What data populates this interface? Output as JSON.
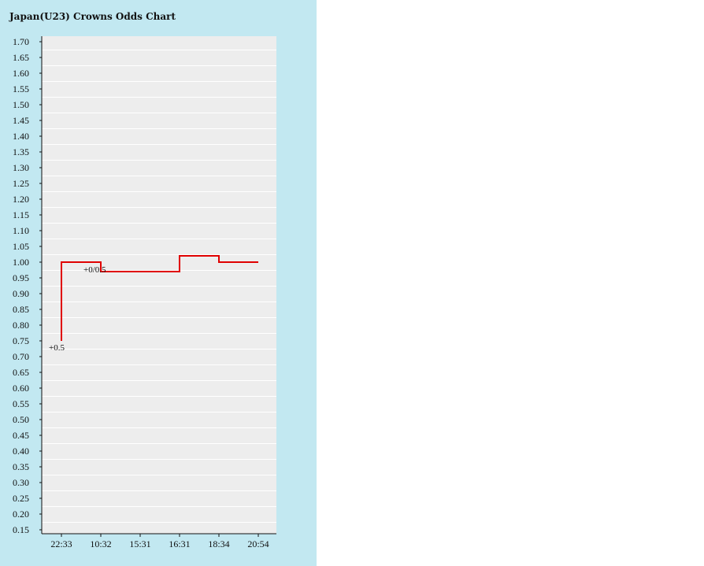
{
  "chart_data": {
    "type": "line",
    "title": "Japan(U23) Crowns Odds Chart",
    "xlabel": "",
    "ylabel": "",
    "ylim": [
      0.15,
      1.72
    ],
    "yticks": [
      "1.70",
      "1.65",
      "1.60",
      "1.55",
      "1.50",
      "1.45",
      "1.40",
      "1.35",
      "1.30",
      "1.25",
      "1.20",
      "1.15",
      "1.10",
      "1.05",
      "1.00",
      "0.95",
      "0.90",
      "0.85",
      "0.80",
      "0.75",
      "0.70",
      "0.65",
      "0.60",
      "0.55",
      "0.50",
      "0.45",
      "0.40",
      "0.35",
      "0.30",
      "0.25",
      "0.20",
      "0.15"
    ],
    "x_labels": [
      "22:33",
      "10:32",
      "15:31",
      "16:31",
      "18:34",
      "20:54"
    ],
    "grid": true,
    "step": true,
    "series": [
      {
        "color": "#e00000",
        "points": [
          {
            "x": "22:33",
            "y": 0.75
          },
          {
            "x": "22:33",
            "y": 1.0
          },
          {
            "x": "10:32",
            "y": 1.0
          },
          {
            "x": "10:32",
            "y": 0.97
          },
          {
            "x": "16:31",
            "y": 0.97
          },
          {
            "x": "16:31",
            "y": 1.02
          },
          {
            "x": "18:34",
            "y": 1.02
          },
          {
            "x": "18:34",
            "y": 1.0
          },
          {
            "x": "20:54",
            "y": 1.0
          }
        ]
      }
    ],
    "annotations": [
      {
        "text": "+0.5",
        "x": "22:33",
        "y": 0.75
      },
      {
        "text": "+0/0.5",
        "x": "10:32",
        "y": 0.97
      }
    ]
  }
}
